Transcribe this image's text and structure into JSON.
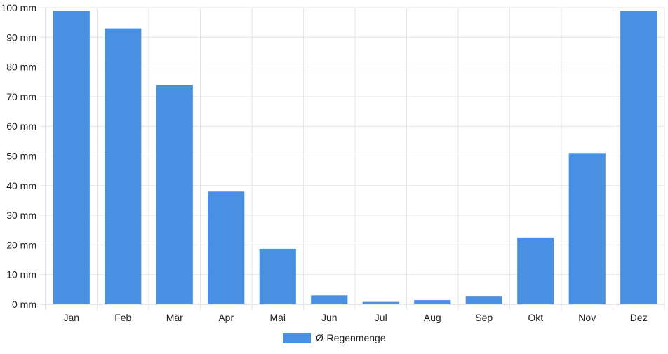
{
  "chart_data": {
    "type": "bar",
    "categories": [
      "Jan",
      "Feb",
      "Mär",
      "Apr",
      "Mai",
      "Jun",
      "Jul",
      "Aug",
      "Sep",
      "Okt",
      "Nov",
      "Dez"
    ],
    "series": [
      {
        "name": "Ø-Regenmenge",
        "values": [
          99,
          93,
          74,
          38,
          18.7,
          3,
          0.8,
          1.4,
          2.8,
          22.5,
          51,
          99
        ]
      }
    ],
    "y_ticks": [
      "0 mm",
      "10 mm",
      "20 mm",
      "30 mm",
      "40 mm",
      "50 mm",
      "60 mm",
      "70 mm",
      "80 mm",
      "90 mm",
      "100 mm"
    ],
    "ylim": [
      0,
      100
    ],
    "grid": true,
    "legend": "bottom-center",
    "colors": {
      "bar": "#4a90e2",
      "grid": "#e6e6e6",
      "axis": "#cccccc"
    }
  }
}
